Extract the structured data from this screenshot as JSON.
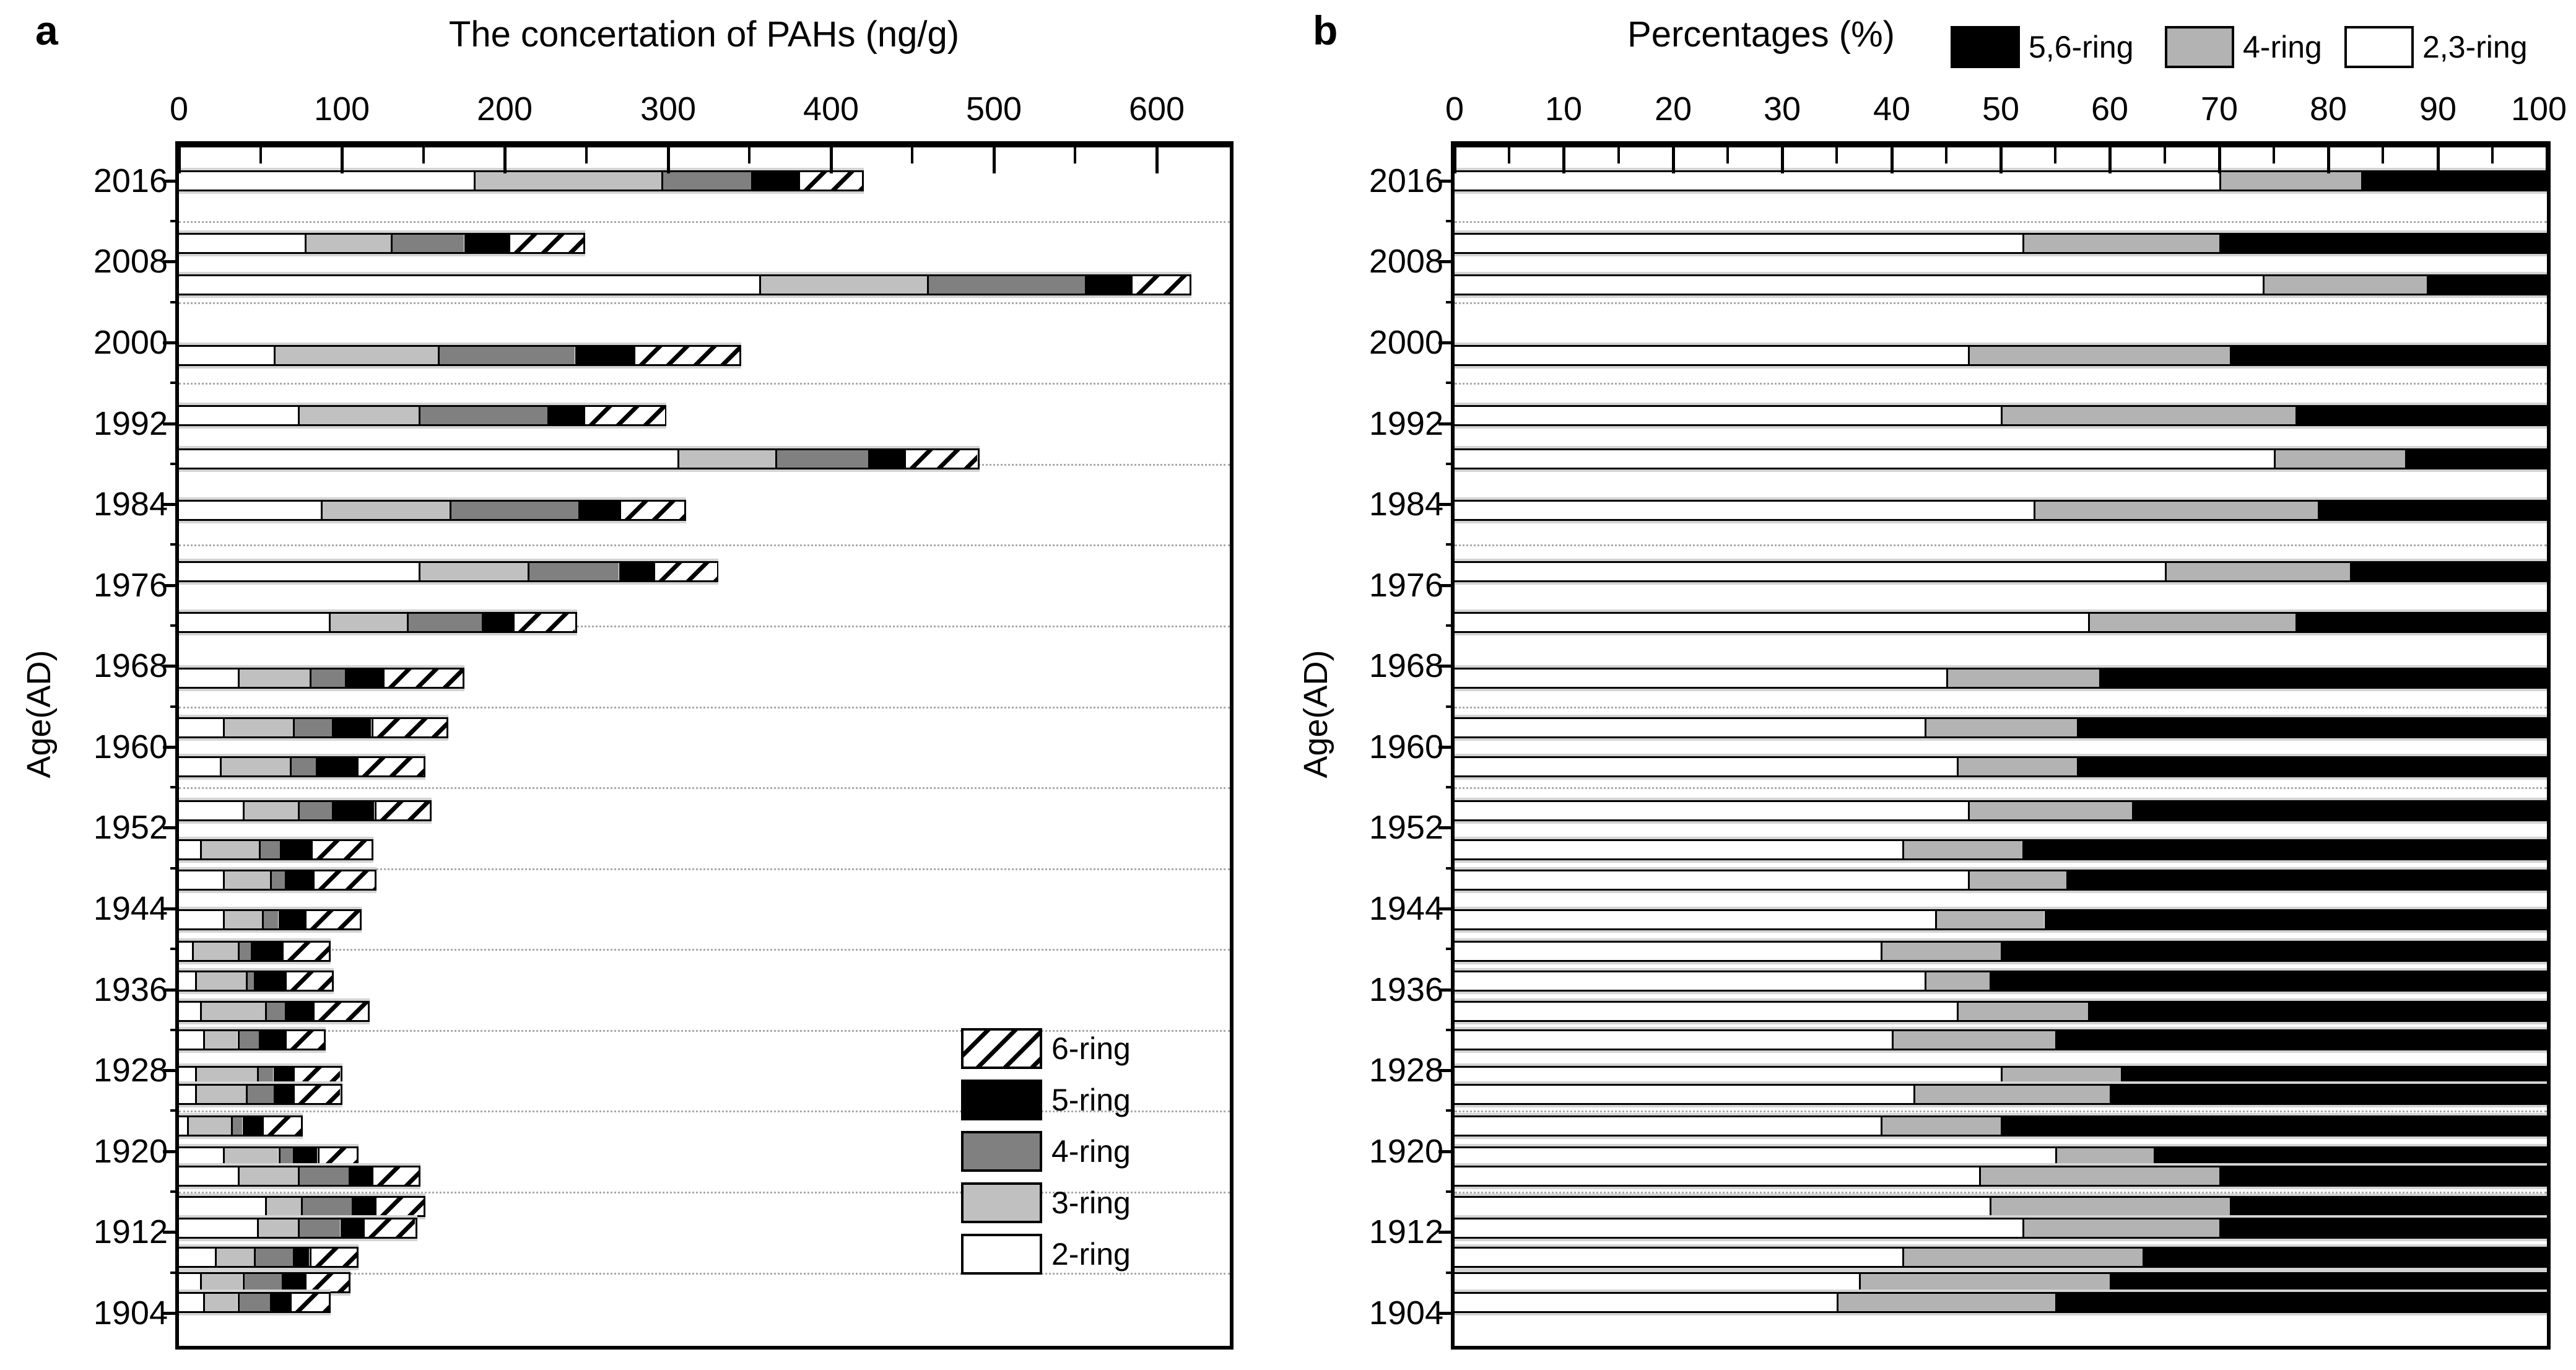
{
  "figure": {
    "panels": [
      {
        "id": "a",
        "letter": "a",
        "title": "The concertation of PAHs (ng/g)",
        "y_axis_label": "Age(AD)",
        "x_tick_labels": [
          "0",
          "100",
          "200",
          "300",
          "400",
          "500",
          "600"
        ],
        "y_tick_labels": [
          "2016",
          "2008",
          "2000",
          "1992",
          "1984",
          "1976",
          "1968",
          "1960",
          "1952",
          "1944",
          "1936",
          "1928",
          "1920",
          "1912",
          "1904"
        ],
        "legend": [
          {
            "label": "6-ring",
            "fill": "hatch"
          },
          {
            "label": "5-ring",
            "fill": "#000000"
          },
          {
            "label": "4-ring",
            "fill": "#808080"
          },
          {
            "label": "3-ring",
            "fill": "#c0c0c0"
          },
          {
            "label": "2-ring",
            "fill": "#ffffff"
          }
        ]
      },
      {
        "id": "b",
        "letter": "b",
        "title": "Percentages (%)",
        "y_axis_label": "Age(AD)",
        "x_tick_labels": [
          "0",
          "10",
          "20",
          "30",
          "40",
          "50",
          "60",
          "70",
          "80",
          "90",
          "100"
        ],
        "y_tick_labels": [
          "2016",
          "2008",
          "2000",
          "1992",
          "1984",
          "1976",
          "1968",
          "1960",
          "1952",
          "1944",
          "1936",
          "1928",
          "1920",
          "1912",
          "1904"
        ],
        "legend": [
          {
            "label": "5,6-ring",
            "fill": "#000000"
          },
          {
            "label": "4-ring",
            "fill": "#b3b3b3"
          },
          {
            "label": "2,3-ring",
            "fill": "#ffffff"
          }
        ]
      }
    ]
  },
  "chart_data": [
    {
      "type": "bar",
      "orientation": "horizontal-stacked",
      "title": "The concertation of PAHs (ng/g)",
      "ylabel": "Age(AD)",
      "xlim": [
        0,
        645
      ],
      "x_ticks": [
        0,
        100,
        200,
        300,
        400,
        500,
        600
      ],
      "x_minor_tick_step": 50,
      "ylim": [
        1901,
        2019
      ],
      "y_ticks": [
        2016,
        2008,
        2000,
        1992,
        1984,
        1976,
        1968,
        1960,
        1952,
        1944,
        1936,
        1928,
        1920,
        1912,
        1904
      ],
      "grid": "horizontal dotted lines at 4-year minor ticks",
      "legend_position": "inside lower right",
      "series_order": [
        "2-ring",
        "3-ring",
        "4-ring",
        "5-ring",
        "6-ring"
      ],
      "series_fills": [
        "#ffffff",
        "#c0c0c0",
        "#808080",
        "#000000",
        "hatch"
      ],
      "bars": [
        {
          "year": 2016.0,
          "values": [
            181,
            115,
            55,
            29,
            39
          ]
        },
        {
          "year": 2009.8,
          "values": [
            77,
            53,
            45,
            27,
            46
          ]
        },
        {
          "year": 2005.7,
          "values": [
            356,
            103,
            97,
            28,
            36
          ]
        },
        {
          "year": 1998.7,
          "values": [
            58,
            101,
            84,
            36,
            65
          ]
        },
        {
          "year": 1992.8,
          "values": [
            73,
            74,
            79,
            22,
            50
          ]
        },
        {
          "year": 1988.5,
          "values": [
            306,
            60,
            57,
            22,
            45
          ]
        },
        {
          "year": 1983.4,
          "values": [
            87,
            79,
            79,
            25,
            40
          ]
        },
        {
          "year": 1977.3,
          "values": [
            147,
            67,
            56,
            21,
            39
          ]
        },
        {
          "year": 1972.3,
          "values": [
            92,
            48,
            46,
            19,
            38
          ]
        },
        {
          "year": 1966.8,
          "values": [
            36,
            44,
            22,
            23,
            49
          ]
        },
        {
          "year": 1961.9,
          "values": [
            27,
            43,
            24,
            24,
            46
          ]
        },
        {
          "year": 1958.0,
          "values": [
            25,
            43,
            16,
            25,
            41
          ]
        },
        {
          "year": 1953.7,
          "values": [
            39,
            34,
            21,
            26,
            34
          ]
        },
        {
          "year": 1949.8,
          "values": [
            13,
            36,
            13,
            19,
            37
          ]
        },
        {
          "year": 1946.8,
          "values": [
            27,
            29,
            9,
            17,
            38
          ]
        },
        {
          "year": 1942.9,
          "values": [
            27,
            24,
            10,
            16,
            34
          ]
        },
        {
          "year": 1939.8,
          "values": [
            8,
            28,
            8,
            19,
            29
          ]
        },
        {
          "year": 1936.8,
          "values": [
            10,
            31,
            5,
            19,
            29
          ]
        },
        {
          "year": 1933.8,
          "values": [
            13,
            40,
            12,
            17,
            34
          ]
        },
        {
          "year": 1931.0,
          "values": [
            15,
            21,
            13,
            16,
            24
          ]
        },
        {
          "year": 1927.4,
          "values": [
            10,
            38,
            10,
            12,
            29
          ]
        },
        {
          "year": 1925.6,
          "values": [
            10,
            31,
            17,
            12,
            29
          ]
        },
        {
          "year": 1922.5,
          "values": [
            5,
            27,
            7,
            12,
            24
          ]
        },
        {
          "year": 1919.4,
          "values": [
            27,
            34,
            9,
            15,
            24
          ]
        },
        {
          "year": 1917.5,
          "values": [
            36,
            37,
            31,
            14,
            29
          ]
        },
        {
          "year": 1914.5,
          "values": [
            53,
            22,
            31,
            14,
            30
          ]
        },
        {
          "year": 1912.4,
          "values": [
            48,
            25,
            26,
            14,
            32
          ]
        },
        {
          "year": 1909.5,
          "values": [
            22,
            24,
            24,
            10,
            29
          ]
        },
        {
          "year": 1907.0,
          "values": [
            13,
            26,
            24,
            14,
            27
          ]
        },
        {
          "year": 1905.0,
          "values": [
            15,
            21,
            20,
            12,
            24
          ]
        }
      ]
    },
    {
      "type": "bar",
      "orientation": "horizontal-stacked",
      "title": "Percentages (%)",
      "ylabel": "Age(AD)",
      "xlim": [
        0,
        100
      ],
      "x_ticks": [
        0,
        10,
        20,
        30,
        40,
        50,
        60,
        70,
        80,
        90,
        100
      ],
      "x_minor_tick_step": 5,
      "ylim": [
        1901,
        2019
      ],
      "y_ticks": [
        2016,
        2008,
        2000,
        1992,
        1984,
        1976,
        1968,
        1960,
        1952,
        1944,
        1936,
        1928,
        1920,
        1912,
        1904
      ],
      "grid": "horizontal dotted lines at 4-year minor ticks",
      "legend_position": "top right above plot",
      "series_order": [
        "2,3-ring",
        "4-ring",
        "5,6-ring"
      ],
      "series_fills": [
        "#ffffff",
        "#b3b3b3",
        "#000000"
      ],
      "bars": [
        {
          "year": 2016.0,
          "values": [
            70,
            13,
            17
          ]
        },
        {
          "year": 2009.8,
          "values": [
            52,
            18,
            30
          ]
        },
        {
          "year": 2005.7,
          "values": [
            74,
            15,
            11
          ]
        },
        {
          "year": 1998.7,
          "values": [
            47,
            24,
            29
          ]
        },
        {
          "year": 1992.8,
          "values": [
            50,
            27,
            23
          ]
        },
        {
          "year": 1988.5,
          "values": [
            75,
            12,
            13
          ]
        },
        {
          "year": 1983.4,
          "values": [
            53,
            26,
            21
          ]
        },
        {
          "year": 1977.3,
          "values": [
            65,
            17,
            18
          ]
        },
        {
          "year": 1972.3,
          "values": [
            58,
            19,
            23
          ]
        },
        {
          "year": 1966.8,
          "values": [
            45,
            14,
            41
          ]
        },
        {
          "year": 1961.9,
          "values": [
            43,
            14,
            43
          ]
        },
        {
          "year": 1958.0,
          "values": [
            46,
            11,
            43
          ]
        },
        {
          "year": 1953.7,
          "values": [
            47,
            15,
            38
          ]
        },
        {
          "year": 1949.8,
          "values": [
            41,
            11,
            48
          ]
        },
        {
          "year": 1946.8,
          "values": [
            47,
            9,
            44
          ]
        },
        {
          "year": 1942.9,
          "values": [
            44,
            10,
            46
          ]
        },
        {
          "year": 1939.8,
          "values": [
            39,
            11,
            50
          ]
        },
        {
          "year": 1936.8,
          "values": [
            43,
            6,
            51
          ]
        },
        {
          "year": 1933.8,
          "values": [
            46,
            12,
            42
          ]
        },
        {
          "year": 1931.0,
          "values": [
            40,
            15,
            45
          ]
        },
        {
          "year": 1927.4,
          "values": [
            50,
            11,
            39
          ]
        },
        {
          "year": 1925.6,
          "values": [
            42,
            18,
            40
          ]
        },
        {
          "year": 1922.5,
          "values": [
            39,
            11,
            50
          ]
        },
        {
          "year": 1919.4,
          "values": [
            55,
            9,
            36
          ]
        },
        {
          "year": 1917.5,
          "values": [
            48,
            22,
            30
          ]
        },
        {
          "year": 1914.5,
          "values": [
            49,
            22,
            29
          ]
        },
        {
          "year": 1912.4,
          "values": [
            52,
            18,
            30
          ]
        },
        {
          "year": 1909.5,
          "values": [
            41,
            22,
            37
          ]
        },
        {
          "year": 1907.0,
          "values": [
            37,
            23,
            40
          ]
        },
        {
          "year": 1905.0,
          "values": [
            35,
            20,
            45
          ]
        }
      ]
    }
  ]
}
